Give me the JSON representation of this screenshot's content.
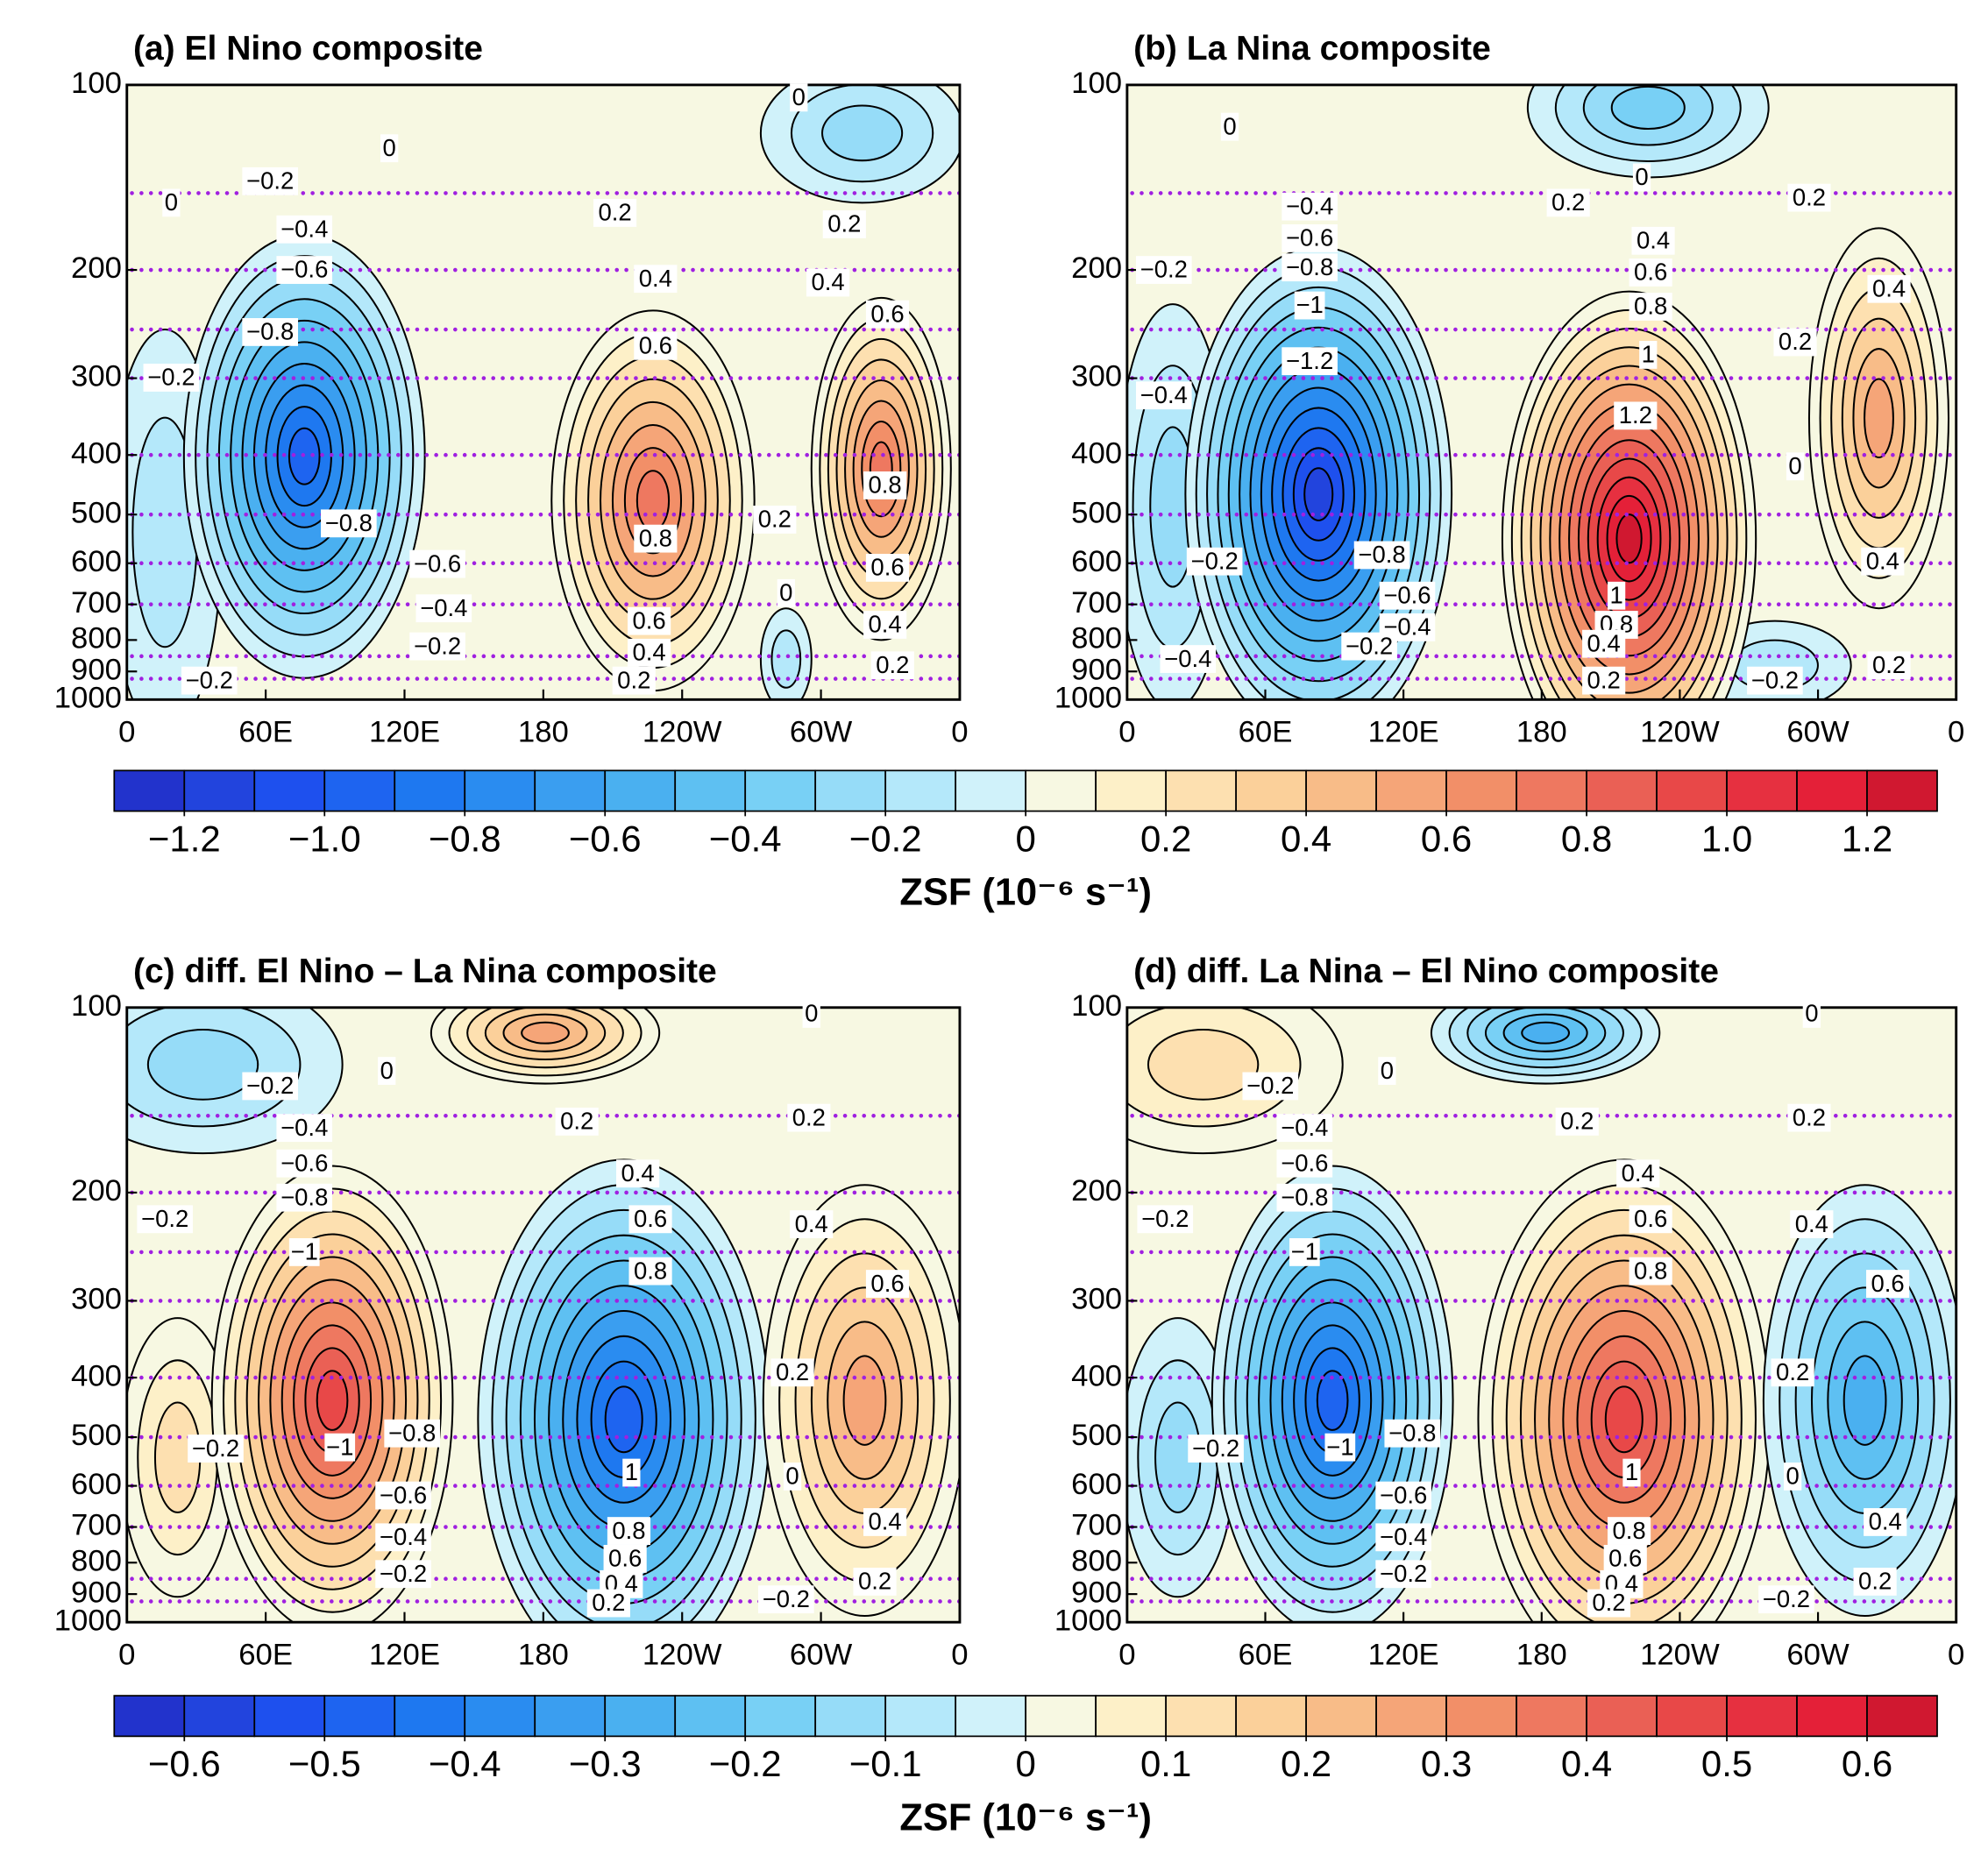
{
  "chart_data": [
    {
      "type": "contour",
      "title": "(a) El Nino composite",
      "xlim": [
        0,
        360
      ],
      "xticks": [
        0,
        {
          "value": 60,
          "label": "60E"
        },
        {
          "value": 120,
          "label": "120E"
        },
        180,
        {
          "value": 240,
          "label": "120W"
        },
        {
          "value": 300,
          "label": "60W"
        },
        {
          "value": 360,
          "label": "0"
        }
      ],
      "ylim": [
        1000,
        100
      ],
      "log_y": true,
      "yticks": [
        100,
        200,
        300,
        400,
        500,
        600,
        700,
        800,
        900,
        1000
      ],
      "contour_labels": [
        "0",
        "−0.2",
        "0",
        "0.2",
        "0.2",
        "−0.4",
        "−0.6",
        "0.4",
        "0.4",
        "−0.8",
        "0.6",
        "0.6",
        "−0.2",
        "0.8",
        "0.2",
        "−0.8",
        "0.8",
        "−0.6",
        "0.6",
        "0",
        "−0.4",
        "0.6",
        "0.4",
        "−0.2",
        "0.4",
        "0.2",
        "−0.2",
        "0.2",
        "0"
      ]
    },
    {
      "type": "contour",
      "title": "(b) La Nina composite",
      "xlim": [
        0,
        360
      ],
      "xticks": [
        0,
        {
          "value": 60,
          "label": "60E"
        },
        {
          "value": 120,
          "label": "120E"
        },
        180,
        {
          "value": 240,
          "label": "120W"
        },
        {
          "value": 300,
          "label": "60W"
        },
        {
          "value": 360,
          "label": "0"
        }
      ],
      "ylim": [
        1000,
        100
      ],
      "log_y": true,
      "yticks": [
        100,
        200,
        300,
        400,
        500,
        600,
        700,
        800,
        900,
        1000
      ],
      "contour_labels": [
        "0",
        "0",
        "0.2",
        "0.2",
        "−0.4",
        "−0.6",
        "0.4",
        "−0.8",
        "0.6",
        "−0.2",
        "0.4",
        "0.8",
        "−1",
        "0.2",
        "1",
        "−1.2",
        "−0.4",
        "1.2",
        "0",
        "−0.2",
        "−0.8",
        "0.4",
        "−0.6",
        "1",
        "0.8",
        "−0.4",
        "0.4",
        "−0.2",
        "−0.4",
        "0.2",
        "−0.2",
        "0.2"
      ]
    },
    {
      "type": "contour",
      "title": "(c) diff. El Nino – La Nina composite",
      "xlim": [
        0,
        360
      ],
      "xticks": [
        0,
        {
          "value": 60,
          "label": "60E"
        },
        {
          "value": 120,
          "label": "120E"
        },
        180,
        {
          "value": 240,
          "label": "120W"
        },
        {
          "value": 300,
          "label": "60W"
        },
        {
          "value": 360,
          "label": "0"
        }
      ],
      "ylim": [
        1000,
        100
      ],
      "log_y": true,
      "yticks": [
        100,
        200,
        300,
        400,
        500,
        600,
        700,
        800,
        900,
        1000
      ],
      "contour_labels": [
        "0",
        "−0.2",
        "0.2",
        "0.2",
        "−0.4",
        "−0.6",
        "0.4",
        "−0.8",
        "−0.2",
        "0.6",
        "0.4",
        "−1",
        "0.8",
        "0.6",
        "0.2",
        "−0.8",
        "−1",
        "−0.2",
        "1",
        "0",
        "−0.6",
        "0.8",
        "0.4",
        "−0.4",
        "0.6",
        "−0.2",
        "0.4",
        "0.2",
        "−0.2",
        "0.2",
        "0"
      ]
    },
    {
      "type": "contour",
      "title": "(d) diff. La Nina – El Nino composite",
      "xlim": [
        0,
        360
      ],
      "xticks": [
        0,
        {
          "value": 60,
          "label": "60E"
        },
        {
          "value": 120,
          "label": "120E"
        },
        180,
        {
          "value": 240,
          "label": "120W"
        },
        {
          "value": 300,
          "label": "60W"
        },
        {
          "value": 360,
          "label": "0"
        }
      ],
      "ylim": [
        1000,
        100
      ],
      "log_y": true,
      "yticks": [
        100,
        200,
        300,
        400,
        500,
        600,
        700,
        800,
        900,
        1000
      ],
      "contour_labels": [
        "0",
        "−0.2",
        "0.2",
        "0.2",
        "−0.4",
        "−0.6",
        "0.4",
        "−0.8",
        "−0.2",
        "0.6",
        "0.4",
        "−1",
        "0.8",
        "0.6",
        "0.2",
        "−0.8",
        "−1",
        "−0.2",
        "1",
        "0",
        "−0.6",
        "0.8",
        "0.4",
        "−0.4",
        "0.6",
        "−0.2",
        "0.4",
        "0.2",
        "−0.2",
        "0.2",
        "0"
      ]
    },
    {
      "type": "colorbar",
      "label": "ZSF (10⁻⁶ s⁻¹)",
      "lim": [
        -1.3,
        1.3
      ],
      "ticks": [
        {
          "value": -1.2,
          "label": "−1.2"
        },
        {
          "value": -1.0,
          "label": "−1.0"
        },
        {
          "value": -0.8,
          "label": "−0.8"
        },
        {
          "value": -0.6,
          "label": "−0.6"
        },
        {
          "value": -0.4,
          "label": "−0.4"
        },
        {
          "value": -0.2,
          "label": "−0.2"
        },
        0,
        0.2,
        0.4,
        0.6,
        0.8,
        {
          "value": 1.0,
          "label": "1.0"
        },
        1.2
      ],
      "colors": [
        "#2233cc",
        "#2244dd",
        "#1e50ee",
        "#1e64f0",
        "#1e78f0",
        "#2a8cf0",
        "#3a9ef0",
        "#4ab0f0",
        "#5ec0f2",
        "#78d0f5",
        "#96dcf8",
        "#b4e8fa",
        "#d0f2fa",
        "#f7f8e2",
        "#fdf0c8",
        "#fde0b0",
        "#fbd09a",
        "#f8bc88",
        "#f5a578",
        "#f28f68",
        "#ee7860",
        "#ea6055",
        "#e84848",
        "#e63040",
        "#e42038",
        "#d01830"
      ]
    },
    {
      "type": "colorbar",
      "label": "ZSF (10⁻⁶ s⁻¹)",
      "lim": [
        -0.65,
        0.65
      ],
      "ticks": [
        {
          "value": -0.6,
          "label": "−0.6"
        },
        {
          "value": -0.5,
          "label": "−0.5"
        },
        {
          "value": -0.4,
          "label": "−0.4"
        },
        {
          "value": -0.3,
          "label": "−0.3"
        },
        {
          "value": -0.2,
          "label": "−0.2"
        },
        {
          "value": -0.1,
          "label": "−0.1"
        },
        0,
        0.1,
        0.2,
        0.3,
        0.4,
        0.5,
        0.6
      ],
      "colors": [
        "#2233cc",
        "#2244dd",
        "#1e50ee",
        "#1e64f0",
        "#1e78f0",
        "#2a8cf0",
        "#3a9ef0",
        "#4ab0f0",
        "#5ec0f2",
        "#78d0f5",
        "#96dcf8",
        "#b4e8fa",
        "#d0f2fa",
        "#f7f8e2",
        "#fdf0c8",
        "#fde0b0",
        "#fbd09a",
        "#f8bc88",
        "#f5a578",
        "#f28f68",
        "#ee7860",
        "#ea6055",
        "#e84848",
        "#e63040",
        "#e42038",
        "#d01830"
      ]
    }
  ]
}
